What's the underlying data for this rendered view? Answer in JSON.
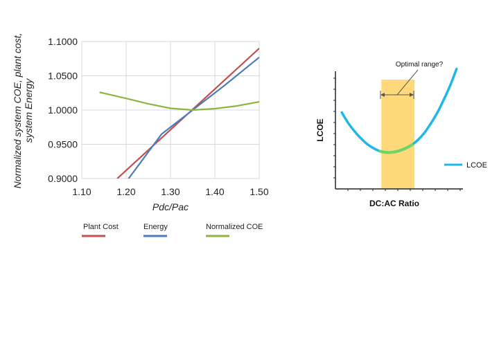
{
  "chart_data": [
    {
      "type": "line",
      "xlabel": "Pdc/Pac",
      "ylabel_line1": "Normalized system COE, plant cost,",
      "ylabel_line2": "system Energy",
      "xlim": [
        1.1,
        1.5
      ],
      "ylim": [
        0.9,
        1.1
      ],
      "x_ticks": [
        "1.10",
        "1.20",
        "1.30",
        "1.40",
        "1.50"
      ],
      "y_ticks": [
        "0.9000",
        "0.9500",
        "1.0000",
        "1.0500",
        "1.1000"
      ],
      "grid": true,
      "series": [
        {
          "name": "Plant Cost",
          "color": "#c0504d",
          "x": [
            1.18,
            1.5
          ],
          "y": [
            0.9,
            1.09
          ]
        },
        {
          "name": "Energy",
          "color": "#4a7ebb",
          "x": [
            1.2,
            1.28,
            1.35,
            1.42,
            1.5
          ],
          "y": [
            0.895,
            0.965,
            1.0,
            1.035,
            1.077
          ]
        },
        {
          "name": "Normalized COE",
          "color": "#8db43e",
          "x": [
            1.14,
            1.2,
            1.25,
            1.3,
            1.35,
            1.4,
            1.45,
            1.5
          ],
          "y": [
            1.026,
            1.017,
            1.009,
            1.0025,
            1.0,
            1.002,
            1.006,
            1.012
          ]
        }
      ],
      "legend": [
        {
          "label": "Plant Cost",
          "color": "#c0504d"
        },
        {
          "label": "Energy",
          "color": "#4a7ebb"
        },
        {
          "label": "Normalized COE",
          "color": "#8db43e"
        }
      ]
    },
    {
      "type": "line",
      "xlabel": "DC:AC Ratio",
      "ylabel": "LCOE",
      "annotation": "Optimal range?",
      "legend_label": "LCOE",
      "colors": {
        "curve": "#1fb6e8",
        "optimal_curve": "#7ed957",
        "band": "#ffd56b",
        "axis": "#222222"
      },
      "xlim": [
        0,
        10
      ],
      "ylim": [
        0,
        10
      ],
      "band_x": [
        3.6,
        6.2
      ],
      "curve": {
        "x": [
          0.5,
          1.0,
          1.5,
          2.0,
          2.5,
          3.0,
          3.5,
          4.0,
          4.5,
          5.0,
          5.5,
          6.0,
          6.5,
          7.0,
          7.5,
          8.0,
          8.5,
          9.0,
          9.5
        ],
        "y": [
          6.5,
          5.6,
          4.9,
          4.3,
          3.8,
          3.45,
          3.2,
          3.1,
          3.12,
          3.25,
          3.45,
          3.75,
          4.2,
          4.8,
          5.6,
          6.5,
          7.6,
          8.8,
          10.2
        ]
      }
    }
  ]
}
